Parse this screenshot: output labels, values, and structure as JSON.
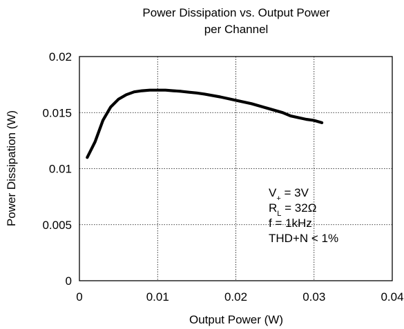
{
  "chart_data": {
    "type": "line",
    "title": "Power Dissipation vs. Output Power",
    "subtitle": "per Channel",
    "xlabel": "Output Power (W)",
    "ylabel": "Power Dissipation (W)",
    "xlim": [
      0,
      0.04
    ],
    "ylim": [
      0,
      0.02
    ],
    "xticks": [
      0,
      0.01,
      0.02,
      0.03,
      0.04
    ],
    "xtick_labels": [
      "0",
      "0.01",
      "0.02",
      "0.03",
      "0.04"
    ],
    "yticks": [
      0,
      0.005,
      0.01,
      0.015,
      0.02
    ],
    "ytick_labels": [
      "0",
      "0.005",
      "0.01",
      "0.015",
      "0.02"
    ],
    "grid": true,
    "series": [
      {
        "x": [
          0.001,
          0.002,
          0.003,
          0.004,
          0.005,
          0.006,
          0.007,
          0.008,
          0.009,
          0.01,
          0.011,
          0.012,
          0.013,
          0.014,
          0.015,
          0.016,
          0.018,
          0.02,
          0.022,
          0.024,
          0.026,
          0.027,
          0.028,
          0.029,
          0.03,
          0.031
        ],
        "y": [
          0.011,
          0.0124,
          0.0143,
          0.0155,
          0.0162,
          0.0166,
          0.01685,
          0.01695,
          0.017,
          0.017,
          0.017,
          0.01695,
          0.0169,
          0.01682,
          0.01675,
          0.01665,
          0.0164,
          0.0161,
          0.0158,
          0.0154,
          0.015,
          0.0147,
          0.01455,
          0.0144,
          0.0143,
          0.0141
        ],
        "color": "#000000"
      }
    ],
    "annotations": [
      {
        "parts": [
          {
            "t": "V"
          },
          {
            "t": "+",
            "sub": true
          },
          {
            "t": " = 3V"
          }
        ]
      },
      {
        "parts": [
          {
            "t": "R"
          },
          {
            "t": "L",
            "sub": true
          },
          {
            "t": " = 32Ω"
          }
        ]
      },
      {
        "parts": [
          {
            "t": "f = 1kHz"
          }
        ]
      },
      {
        "parts": [
          {
            "t": "THD+N < 1%"
          }
        ]
      }
    ]
  }
}
